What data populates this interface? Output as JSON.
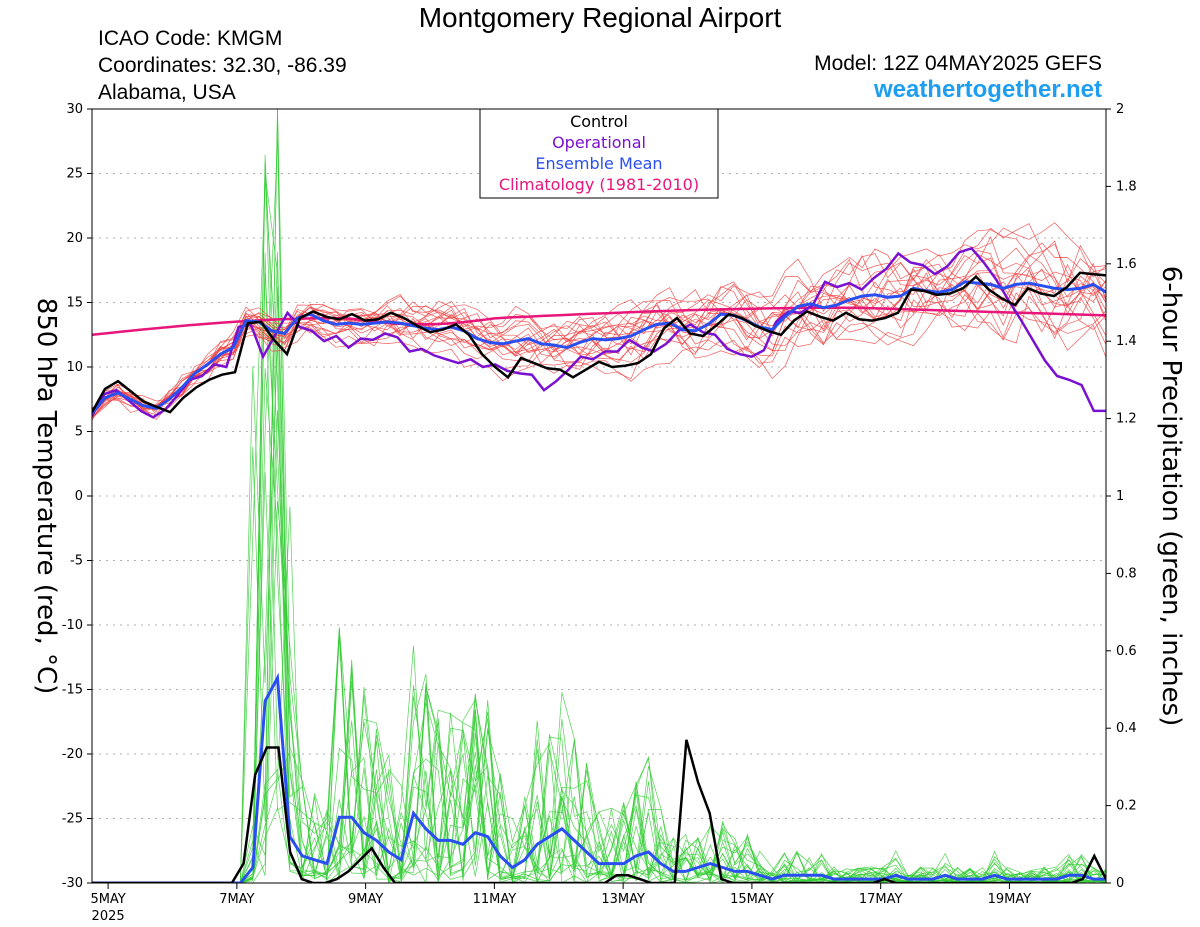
{
  "header": {
    "title": "Montgomery Regional Airport",
    "icao": "ICAO Code: KMGM",
    "coordinates": "Coordinates: 32.30, -86.39",
    "region": "Alabama, USA",
    "model": "Model: 12Z 04MAY2025 GEFS",
    "site": "weathertogether.net"
  },
  "colors": {
    "control": "#000000",
    "operational": "#7a10d0",
    "ensemble_mean": "#2a4ff0",
    "climatology": "#e8157a",
    "members_temp": "#f04040",
    "members_precip": "#33cc33",
    "site": "#1e9ef0"
  },
  "chart_data": {
    "type": "line",
    "ylabel": "850 hPa Temperature (red, °C)",
    "y2label": "6-hour Precipitation (green, inches)",
    "ylim": [
      -30,
      30
    ],
    "y2lim": [
      0,
      2
    ],
    "yticks": [
      "30",
      "25",
      "20",
      "15",
      "10",
      "5",
      "0",
      "-5",
      "-10",
      "-15",
      "-20",
      "-25",
      "-30"
    ],
    "y2ticks": [
      "2",
      "1.8",
      "1.6",
      "1.4",
      "1.2",
      "1",
      "0.8",
      "0.6",
      "0.4",
      "0.2",
      "0"
    ],
    "x_ticks": [
      {
        "day": 5,
        "label": "5MAY",
        "sub": "2025"
      },
      {
        "day": 7,
        "label": "7MAY",
        "sub": ""
      },
      {
        "day": 9,
        "label": "9MAY",
        "sub": ""
      },
      {
        "day": 11,
        "label": "11MAY",
        "sub": ""
      },
      {
        "day": 13,
        "label": "13MAY",
        "sub": ""
      },
      {
        "day": 15,
        "label": "15MAY",
        "sub": ""
      },
      {
        "day": 17,
        "label": "17MAY",
        "sub": ""
      },
      {
        "day": 19,
        "label": "19MAY",
        "sub": ""
      }
    ],
    "x_range": [
      "04MAY2025 18Z",
      "20MAY2025 12Z"
    ],
    "time_step": "6-hour",
    "grid": "dotted horizontal",
    "legend": {
      "position": "top-center",
      "entries": [
        {
          "label": "Control",
          "color": "#000000"
        },
        {
          "label": "Operational",
          "color": "#7a10d0"
        },
        {
          "label": "Ensemble Mean",
          "color": "#2a4ff0"
        },
        {
          "label": "Climatology (1981-2010)",
          "color": "#e8157a"
        }
      ]
    },
    "temperature_series": {
      "control": [
        6.5,
        8.3,
        8.9,
        8.1,
        7.3,
        6.9,
        6.5,
        7.6,
        8.4,
        9.0,
        9.4,
        9.6,
        13.4,
        13.5,
        12.1,
        11.0,
        13.8,
        14.3,
        13.9,
        13.7,
        14.1,
        13.6,
        13.7,
        14.2,
        13.8,
        13.2,
        12.7,
        12.9,
        13.3,
        12.5,
        11.0,
        10.0,
        9.2,
        10.7,
        10.3,
        9.9,
        9.8,
        9.2,
        9.8,
        10.4,
        10.0,
        10.1,
        10.3,
        11.0,
        13.0,
        13.8,
        12.6,
        12.4,
        13.2,
        14.1,
        13.8,
        13.2,
        12.8,
        12.5,
        13.6,
        14.3,
        13.9,
        13.6,
        14.2,
        13.7,
        13.6,
        13.8,
        14.2,
        16.0,
        15.9,
        15.6,
        15.7,
        16.1,
        17.0,
        16.0,
        15.3,
        14.8,
        16.1,
        15.7,
        15.5,
        16.2,
        17.3,
        17.2,
        17.1
      ],
      "operational": [
        6.2,
        7.9,
        8.2,
        7.4,
        6.6,
        6.1,
        6.7,
        7.8,
        9.0,
        9.3,
        10.2,
        10.0,
        13.1,
        13.3,
        10.8,
        12.5,
        14.2,
        13.1,
        12.8,
        12.0,
        12.4,
        11.5,
        12.2,
        12.1,
        12.6,
        12.3,
        11.2,
        11.4,
        10.9,
        10.6,
        10.3,
        10.6,
        10.0,
        10.2,
        9.7,
        9.5,
        9.4,
        8.2,
        8.9,
        9.8,
        10.8,
        10.6,
        11.2,
        11.2,
        12.1,
        11.5,
        11.2,
        11.8,
        12.8,
        13.3,
        12.7,
        12.5,
        11.4,
        11.0,
        10.8,
        11.3,
        13.5,
        14.3,
        14.2,
        14.8,
        16.6,
        16.2,
        16.5,
        16.0,
        16.9,
        17.6,
        18.8,
        18.1,
        17.9,
        17.2,
        17.8,
        18.9,
        19.2,
        18.1,
        16.8,
        15.2,
        13.7,
        12.1,
        10.5,
        9.3,
        9.0,
        8.6,
        6.6,
        6.6
      ],
      "ensemble_mean": [
        6.4,
        7.6,
        8.0,
        7.5,
        7.0,
        6.8,
        7.5,
        8.4,
        9.5,
        10.2,
        11.0,
        11.5,
        13.6,
        13.5,
        12.8,
        12.6,
        13.8,
        14.1,
        13.6,
        13.3,
        13.4,
        13.3,
        13.4,
        13.5,
        13.4,
        13.2,
        13.0,
        12.9,
        13.1,
        12.8,
        12.2,
        11.9,
        11.8,
        12.0,
        12.2,
        11.8,
        11.7,
        11.5,
        11.9,
        12.2,
        12.1,
        12.2,
        12.4,
        12.9,
        13.3,
        13.4,
        12.9,
        12.8,
        13.3,
        14.1,
        14.0,
        13.6,
        13.1,
        12.9,
        13.9,
        14.7,
        14.9,
        14.6,
        14.8,
        15.2,
        15.5,
        15.6,
        15.4,
        15.5,
        16.1,
        15.9,
        15.8,
        16.0,
        16.6,
        16.5,
        16.4,
        16.1,
        16.4,
        16.5,
        16.3,
        16.1,
        16.0,
        16.1,
        16.4,
        15.8
      ],
      "climatology_start": 12.5,
      "climatology_mid": 13.8,
      "climatology_late": 14.6,
      "climatology_end": 14.0
    },
    "precipitation_series": {
      "control": [
        0,
        0,
        0,
        0,
        0,
        0,
        0,
        0,
        0,
        0,
        0,
        0,
        0,
        0.05,
        0.28,
        0.35,
        0.35,
        0.08,
        0.01,
        0.0,
        0.0,
        0.01,
        0.03,
        0.06,
        0.09,
        0.04,
        0.0,
        0.0,
        0.0,
        0.0,
        0.0,
        0.0,
        0.0,
        0.0,
        0.0,
        0.0,
        0.0,
        0.0,
        0.0,
        0.0,
        0.0,
        0.0,
        0.0,
        0.0,
        0.0,
        0.02,
        0.02,
        0.01,
        0.0,
        0.0,
        0.0,
        0.37,
        0.26,
        0.18,
        0.01,
        0.0,
        0.0,
        0.0,
        0.0,
        0.0,
        0.0,
        0.0,
        0.0,
        0.0,
        0.0,
        0.0,
        0.0,
        0.0,
        0.01,
        0.0,
        0.0,
        0.0,
        0.0,
        0.0,
        0.0,
        0.0,
        0.0,
        0.0,
        0.0,
        0.0,
        0.0,
        0.0,
        0.0,
        0.0,
        0.0,
        0.01,
        0.07,
        0.01
      ],
      "ensemble_mean": [
        0,
        0,
        0,
        0,
        0,
        0,
        0,
        0,
        0,
        0,
        0,
        0,
        0,
        0.04,
        0.47,
        0.53,
        0.12,
        0.07,
        0.06,
        0.05,
        0.17,
        0.17,
        0.13,
        0.11,
        0.08,
        0.06,
        0.18,
        0.14,
        0.11,
        0.11,
        0.1,
        0.13,
        0.12,
        0.07,
        0.04,
        0.06,
        0.1,
        0.12,
        0.14,
        0.11,
        0.08,
        0.05,
        0.05,
        0.05,
        0.07,
        0.08,
        0.05,
        0.03,
        0.03,
        0.04,
        0.05,
        0.04,
        0.03,
        0.03,
        0.02,
        0.01,
        0.02,
        0.02,
        0.02,
        0.02,
        0.01,
        0.01,
        0.01,
        0.01,
        0.01,
        0.02,
        0.01,
        0.01,
        0.01,
        0.02,
        0.01,
        0.01,
        0.01,
        0.02,
        0.01,
        0.01,
        0.01,
        0.01,
        0.01,
        0.02,
        0.02,
        0.01,
        0.01
      ]
    }
  }
}
